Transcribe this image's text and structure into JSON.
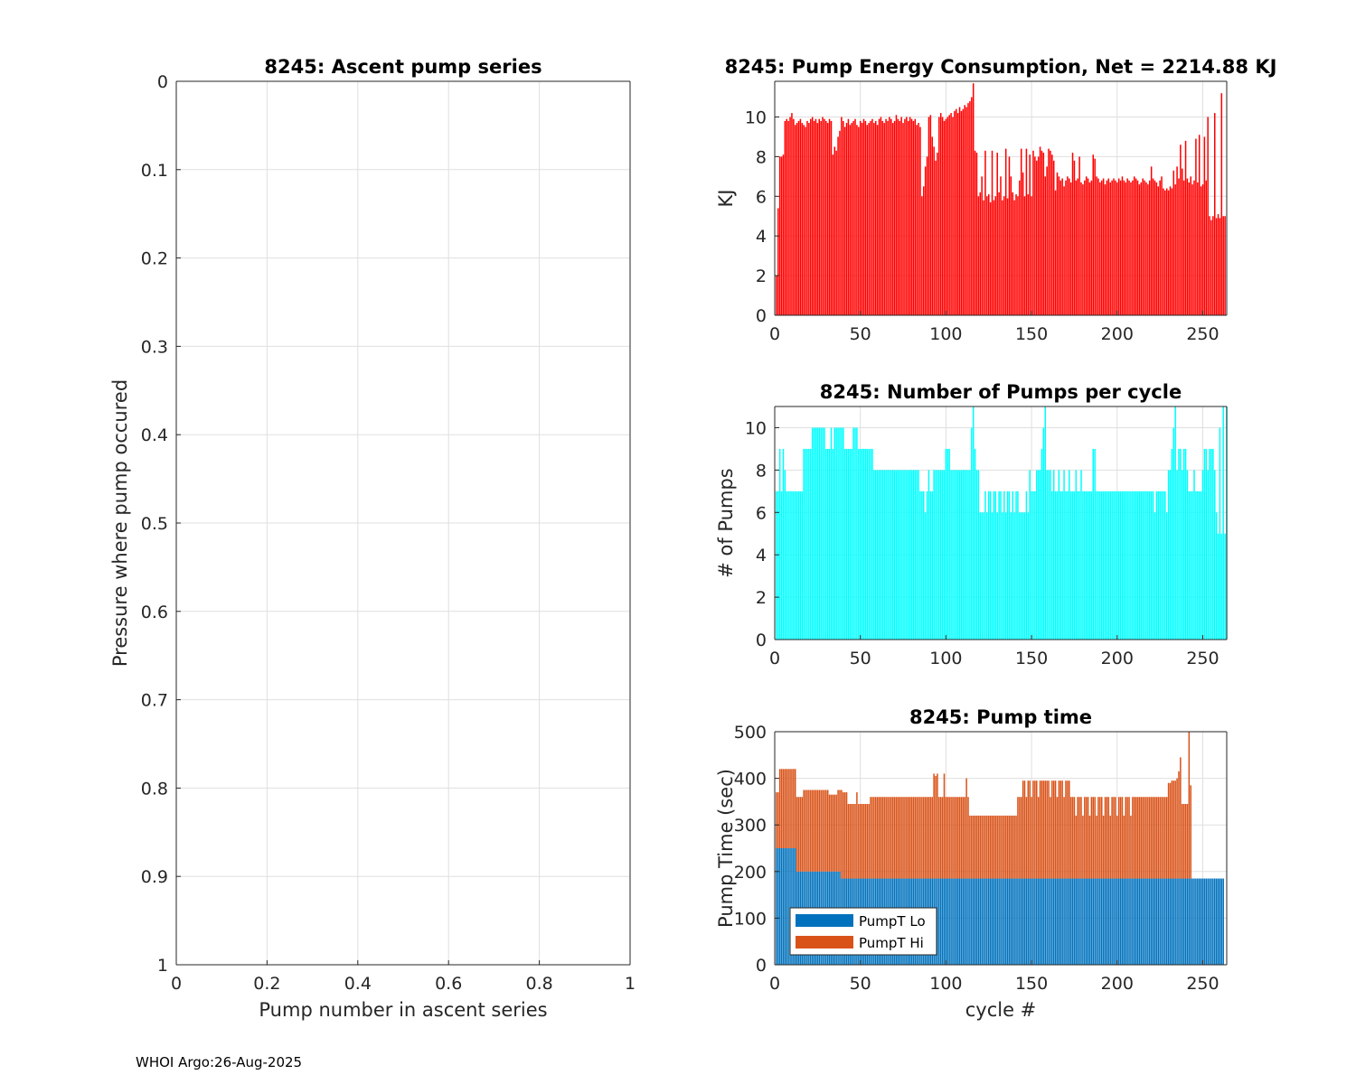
{
  "footer": "WHOI Argo:26-Aug-2025",
  "chart_data": [
    {
      "id": "ascent",
      "type": "scatter",
      "title": "8245: Ascent pump series",
      "xlabel": "Pump number in ascent series",
      "ylabel": "Pressure where pump occured",
      "xlim": [
        0,
        1
      ],
      "ylim": [
        0,
        1
      ],
      "y_reversed": true,
      "xticks": [
        0,
        0.2,
        0.4,
        0.6,
        0.8,
        1
      ],
      "xtick_labels": [
        "0",
        "0.2",
        "0.4",
        "0.6",
        "0.8",
        "1"
      ],
      "yticks": [
        0,
        0.1,
        0.2,
        0.3,
        0.4,
        0.5,
        0.6,
        0.7,
        0.8,
        0.9,
        1
      ],
      "ytick_labels": [
        "0",
        "0.1",
        "0.2",
        "0.3",
        "0.4",
        "0.5",
        "0.6",
        "0.7",
        "0.8",
        "0.9",
        "1"
      ],
      "grid": true,
      "series": []
    },
    {
      "id": "energy",
      "type": "bar",
      "title": "8245: Pump Energy Consumption,  Net = 2214.88 KJ",
      "xlabel": "",
      "ylabel": "KJ",
      "xlim": [
        0,
        264
      ],
      "ylim": [
        0,
        11.8
      ],
      "xticks": [
        0,
        50,
        100,
        150,
        200,
        250
      ],
      "xtick_labels": [
        "0",
        "50",
        "100",
        "150",
        "200",
        "250"
      ],
      "yticks": [
        0,
        2,
        4,
        6,
        8,
        10
      ],
      "ytick_labels": [
        "0",
        "2",
        "4",
        "6",
        "8",
        "10"
      ],
      "grid": true,
      "color": "#ff0000",
      "x_start": 1,
      "values": [
        2.0,
        5.4,
        8.0,
        8.0,
        8.1,
        9.8,
        9.9,
        9.8,
        10.0,
        10.2,
        9.9,
        9.6,
        9.7,
        9.8,
        9.9,
        9.7,
        9.6,
        9.5,
        9.8,
        9.7,
        9.9,
        10.0,
        9.8,
        9.9,
        9.7,
        9.9,
        9.8,
        10.0,
        9.9,
        9.8,
        9.7,
        9.9,
        9.8,
        8.1,
        8.5,
        8.3,
        9.0,
        9.3,
        10.0,
        9.8,
        9.5,
        9.7,
        9.9,
        9.6,
        9.7,
        9.8,
        9.9,
        9.6,
        9.5,
        9.8,
        9.7,
        9.9,
        9.8,
        9.6,
        9.7,
        9.8,
        9.9,
        9.7,
        9.8,
        9.6,
        9.9,
        10.0,
        9.8,
        9.7,
        9.9,
        9.8,
        10.0,
        9.9,
        9.7,
        9.8,
        10.1,
        9.9,
        9.8,
        10.0,
        9.7,
        9.9,
        10.0,
        9.8,
        10.0,
        9.9,
        9.8,
        9.9,
        9.6,
        9.7,
        9.5,
        6.0,
        6.5,
        7.5,
        8.0,
        10.0,
        10.1,
        9.0,
        8.5,
        7.8,
        8.2,
        10.0,
        10.2,
        10.0,
        9.8,
        9.9,
        10.0,
        10.1,
        10.2,
        10.0,
        10.3,
        10.4,
        10.2,
        10.5,
        10.3,
        10.4,
        10.6,
        10.5,
        10.7,
        10.8,
        11.0,
        11.7,
        8.3,
        8.2,
        6.0,
        6.2,
        7.0,
        5.8,
        8.3,
        6.0,
        6.1,
        5.7,
        8.3,
        5.8,
        6.0,
        8.2,
        6.2,
        7.0,
        5.8,
        6.0,
        8.4,
        5.9,
        8.0,
        7.0,
        6.2,
        5.8,
        6.1,
        6.0,
        6.8,
        8.4,
        7.2,
        6.0,
        8.4,
        6.1,
        8.1,
        6.0,
        8.3,
        8.0,
        7.8,
        8.0,
        8.5,
        8.3,
        8.2,
        7.0,
        7.5,
        8.4,
        8.3,
        8.1,
        7.8,
        6.3,
        7.2,
        7.0,
        6.8,
        6.9,
        6.5,
        6.8,
        7.0,
        6.9,
        6.7,
        8.2,
        7.8,
        6.8,
        6.9,
        8.0,
        6.7,
        6.6,
        6.8,
        7.0,
        6.9,
        6.7,
        6.8,
        8.1,
        7.9,
        7.0,
        6.9,
        6.7,
        6.8,
        6.9,
        6.6,
        6.8,
        6.9,
        6.7,
        6.8,
        6.9,
        6.8,
        6.7,
        6.9,
        6.8,
        7.0,
        6.8,
        6.7,
        6.9,
        6.8,
        6.7,
        6.8,
        7.0,
        6.9,
        6.8,
        6.6,
        6.7,
        6.9,
        6.8,
        6.7,
        6.6,
        6.8,
        7.5,
        6.9,
        6.8,
        6.7,
        6.5,
        6.8,
        7.0,
        6.4,
        6.3,
        6.4,
        6.3,
        6.5,
        6.4,
        7.3,
        6.6,
        7.5,
        6.9,
        8.6,
        7.4,
        6.8,
        8.8,
        6.9,
        6.7,
        7.0,
        6.6,
        6.8,
        8.9,
        6.7,
        9.1,
        6.5,
        6.6,
        9.0,
        6.8,
        10.0,
        5.0,
        4.8,
        5.0,
        10.2,
        4.9,
        5.1,
        4.9,
        11.2,
        5.0,
        5.0
      ]
    },
    {
      "id": "npumps",
      "type": "bar",
      "title": "8245: Number of Pumps per cycle",
      "xlabel": "",
      "ylabel": "# of Pumps",
      "xlim": [
        0,
        264
      ],
      "ylim": [
        0,
        11
      ],
      "xticks": [
        0,
        50,
        100,
        150,
        200,
        250
      ],
      "xtick_labels": [
        "0",
        "50",
        "100",
        "150",
        "200",
        "250"
      ],
      "yticks": [
        0,
        2,
        4,
        6,
        8,
        10
      ],
      "ytick_labels": [
        "0",
        "2",
        "4",
        "6",
        "8",
        "10"
      ],
      "grid": true,
      "color": "#00ffff",
      "x_start": 1,
      "values": [
        7,
        7,
        9,
        7,
        9,
        8,
        7,
        7,
        7,
        7,
        7,
        7,
        7,
        7,
        7,
        7,
        9,
        9,
        9,
        9,
        9,
        10,
        10,
        10,
        10,
        10,
        10,
        10,
        10,
        9,
        9,
        9,
        10,
        9,
        10,
        10,
        10,
        10,
        10,
        10,
        9,
        9,
        9,
        9,
        9,
        10,
        10,
        10,
        9,
        9,
        9,
        9,
        9,
        9,
        9,
        9,
        9,
        8,
        8,
        8,
        8,
        8,
        8,
        8,
        8,
        8,
        8,
        8,
        8,
        8,
        8,
        8,
        8,
        8,
        8,
        8,
        8,
        8,
        8,
        8,
        8,
        8,
        8,
        8,
        7,
        7,
        7,
        6,
        7,
        8,
        7,
        7,
        8,
        8,
        8,
        8,
        8,
        8,
        8,
        9,
        9,
        9,
        8,
        8,
        8,
        8,
        8,
        8,
        8,
        8,
        8,
        8,
        8,
        8,
        10,
        11,
        9,
        8,
        8,
        6,
        6,
        6,
        7,
        6,
        7,
        7,
        6,
        7,
        7,
        6,
        7,
        7,
        6,
        7,
        6,
        7,
        7,
        6,
        7,
        6,
        7,
        7,
        6,
        6,
        6,
        6,
        7,
        6,
        8,
        7,
        7,
        7,
        8,
        8,
        8,
        9,
        10,
        11,
        8,
        8,
        8,
        7,
        8,
        7,
        7,
        8,
        7,
        7,
        8,
        7,
        7,
        8,
        7,
        7,
        7,
        8,
        7,
        7,
        8,
        7,
        7,
        7,
        7,
        7,
        7,
        9,
        9,
        7,
        7,
        7,
        7,
        7,
        7,
        7,
        7,
        7,
        7,
        7,
        7,
        7,
        7,
        7,
        7,
        7,
        7,
        7,
        7,
        7,
        7,
        7,
        7,
        7,
        7,
        7,
        7,
        7,
        7,
        7,
        7,
        7,
        7,
        6,
        7,
        7,
        7,
        7,
        7,
        7,
        6,
        8,
        8,
        9,
        10,
        11,
        8,
        9,
        9,
        8,
        9,
        9,
        8,
        7,
        7,
        7,
        8,
        7,
        7,
        7,
        7,
        8,
        9,
        9,
        8,
        9,
        9,
        9,
        8,
        6,
        5,
        10,
        5,
        11,
        5,
        11
      ]
    },
    {
      "id": "pumptime",
      "type": "bar",
      "stacked": true,
      "title": "8245: Pump time",
      "xlabel": "cycle #",
      "ylabel": "Pump Time (sec)",
      "xlim": [
        0,
        264
      ],
      "ylim": [
        0,
        500
      ],
      "xticks": [
        0,
        50,
        100,
        150,
        200,
        250
      ],
      "xtick_labels": [
        "0",
        "50",
        "100",
        "150",
        "200",
        "250"
      ],
      "yticks": [
        0,
        100,
        200,
        300,
        400,
        500
      ],
      "ytick_labels": [
        "0",
        "100",
        "200",
        "300",
        "400",
        "500"
      ],
      "grid": true,
      "legend_position": "bottom-left",
      "x_start": 1,
      "series": [
        {
          "name": "PumpT Lo",
          "color": "#0072bd",
          "values": [
            250,
            250,
            250,
            250,
            250,
            250,
            250,
            250,
            250,
            250,
            250,
            250,
            200,
            200,
            200,
            200,
            200,
            200,
            200,
            200,
            200,
            200,
            200,
            200,
            200,
            200,
            200,
            200,
            200,
            200,
            200,
            200,
            200,
            200,
            200,
            200,
            200,
            200,
            185,
            185,
            185,
            185,
            185,
            185,
            185,
            185,
            185,
            185,
            185,
            185,
            185,
            185,
            185,
            185,
            185,
            185,
            185,
            185,
            185,
            185,
            185,
            185,
            185,
            185,
            185,
            185,
            185,
            185,
            185,
            185,
            185,
            185,
            185,
            185,
            185,
            185,
            185,
            185,
            185,
            185,
            185,
            185,
            185,
            185,
            185,
            185,
            185,
            185,
            185,
            185,
            185,
            185,
            185,
            185,
            185,
            185,
            185,
            185,
            185,
            185,
            185,
            185,
            185,
            185,
            185,
            185,
            185,
            185,
            185,
            185,
            185,
            185,
            185,
            185,
            185,
            185,
            185,
            185,
            185,
            185,
            185,
            185,
            185,
            185,
            185,
            185,
            185,
            185,
            185,
            185,
            185,
            185,
            185,
            185,
            185,
            185,
            185,
            185,
            185,
            185,
            185,
            185,
            185,
            185,
            185,
            185,
            185,
            185,
            185,
            185,
            185,
            185,
            185,
            185,
            185,
            185,
            185,
            185,
            185,
            185,
            185,
            185,
            185,
            185,
            185,
            185,
            185,
            185,
            185,
            185,
            185,
            185,
            185,
            185,
            185,
            185,
            185,
            185,
            185,
            185,
            185,
            185,
            185,
            185,
            185,
            185,
            185,
            185,
            185,
            185,
            185,
            185,
            185,
            185,
            185,
            185,
            185,
            185,
            185,
            185,
            185,
            185,
            185,
            185,
            185,
            185,
            185,
            185,
            185,
            185,
            185,
            185,
            185,
            185,
            185,
            185,
            185,
            185,
            185,
            185,
            185,
            185,
            185,
            185,
            185,
            185,
            185,
            185,
            185,
            185,
            185,
            185,
            185,
            185,
            185,
            185,
            185,
            185,
            185,
            185,
            185,
            185,
            185,
            185,
            185,
            185,
            185,
            185,
            185,
            185,
            185,
            185,
            185,
            185,
            185,
            185,
            185,
            185,
            185,
            185,
            185,
            185
          ]
        },
        {
          "name": "PumpT Hi",
          "color": "#d95319",
          "values": [
            120,
            120,
            170,
            170,
            170,
            170,
            170,
            170,
            170,
            170,
            170,
            170,
            160,
            160,
            160,
            160,
            175,
            175,
            175,
            175,
            175,
            175,
            175,
            175,
            175,
            175,
            175,
            175,
            175,
            175,
            175,
            165,
            165,
            165,
            165,
            165,
            175,
            175,
            190,
            185,
            185,
            185,
            160,
            160,
            160,
            160,
            160,
            185,
            160,
            160,
            160,
            160,
            160,
            160,
            160,
            175,
            175,
            175,
            175,
            175,
            175,
            175,
            175,
            175,
            175,
            175,
            175,
            175,
            175,
            175,
            175,
            175,
            175,
            175,
            175,
            175,
            175,
            175,
            175,
            175,
            175,
            175,
            175,
            175,
            175,
            175,
            175,
            175,
            175,
            175,
            175,
            175,
            225,
            220,
            225,
            175,
            175,
            175,
            225,
            175,
            175,
            175,
            175,
            175,
            175,
            175,
            175,
            175,
            175,
            175,
            175,
            215,
            175,
            135,
            135,
            135,
            135,
            135,
            135,
            135,
            135,
            135,
            135,
            135,
            135,
            135,
            135,
            135,
            135,
            135,
            135,
            135,
            135,
            135,
            135,
            135,
            135,
            135,
            135,
            135,
            135,
            175,
            175,
            175,
            210,
            210,
            175,
            210,
            210,
            175,
            210,
            210,
            210,
            175,
            210,
            210,
            210,
            210,
            210,
            210,
            175,
            210,
            210,
            210,
            175,
            210,
            210,
            210,
            175,
            210,
            210,
            210,
            175,
            175,
            175,
            135,
            175,
            175,
            175,
            135,
            175,
            175,
            175,
            135,
            175,
            175,
            175,
            135,
            175,
            175,
            175,
            135,
            175,
            175,
            175,
            135,
            175,
            175,
            175,
            135,
            175,
            175,
            175,
            135,
            175,
            175,
            175,
            135,
            175,
            175,
            175,
            175,
            175,
            175,
            175,
            175,
            175,
            175,
            175,
            175,
            175,
            175,
            175,
            175,
            175,
            175,
            175,
            175,
            175,
            205,
            205,
            210,
            210,
            210,
            215,
            230,
            260,
            160,
            160,
            160,
            160,
            315,
            200
          ]
        }
      ]
    }
  ]
}
